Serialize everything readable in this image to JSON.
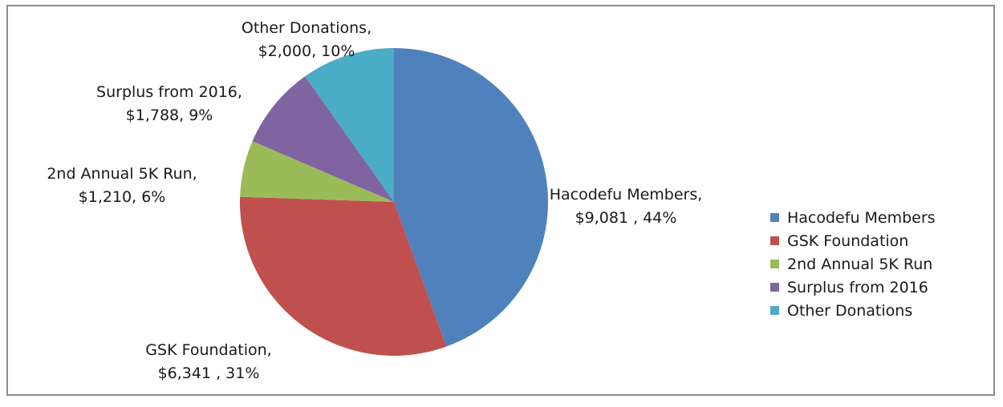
{
  "chart_data": {
    "type": "pie",
    "slices": [
      {
        "label": "Hacodefu Members",
        "value": 9081,
        "percent": 44,
        "color": "#4F81BD",
        "data_label_lines": [
          "Hacodefu Members,",
          "$9,081 , 44%"
        ]
      },
      {
        "label": "GSK Foundation",
        "value": 6341,
        "percent": 31,
        "color": "#C0504D",
        "data_label_lines": [
          "GSK Foundation,",
          "$6,341 , 31%"
        ]
      },
      {
        "label": "2nd Annual 5K Run",
        "value": 1210,
        "percent": 6,
        "color": "#9BBB59",
        "data_label_lines": [
          "2nd Annual 5K Run,",
          "$1,210, 6%"
        ]
      },
      {
        "label": "Surplus from 2016",
        "value": 1788,
        "percent": 9,
        "color": "#8064A2",
        "data_label_lines": [
          "Surplus from 2016,",
          "$1,788, 9%"
        ]
      },
      {
        "label": "Other Donations",
        "value": 2000,
        "percent": 10,
        "color": "#4BACC6",
        "data_label_lines": [
          "Other Donations,",
          "$2,000, 10%"
        ]
      }
    ],
    "legend": {
      "position": "right",
      "entries": [
        "Hacodefu Members",
        "GSK Foundation",
        "2nd Annual 5K Run",
        "Surplus from 2016",
        "Other Donations"
      ]
    }
  }
}
